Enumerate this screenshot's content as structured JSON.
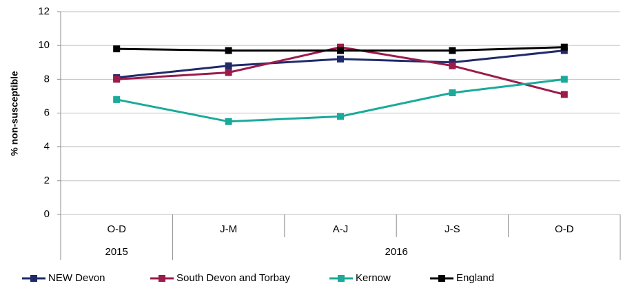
{
  "chart_data": {
    "type": "line",
    "y_label": "% non-susceptible",
    "categories": [
      "O-D",
      "J-M",
      "A-J",
      "J-S",
      "O-D"
    ],
    "category_groups": [
      "2015",
      "2016"
    ],
    "series": [
      {
        "name": "NEW Devon",
        "color": "#1f2a6b",
        "values": [
          8.1,
          8.8,
          9.2,
          9.0,
          9.7
        ]
      },
      {
        "name": "South Devon and Torbay",
        "color": "#9b1b4a",
        "values": [
          8.0,
          8.4,
          9.9,
          8.8,
          7.1
        ]
      },
      {
        "name": "Kernow",
        "color": "#1aaa9a",
        "values": [
          6.8,
          5.5,
          5.8,
          7.2,
          8.0
        ]
      },
      {
        "name": "England",
        "color": "#000000",
        "values": [
          9.8,
          9.7,
          9.7,
          9.7,
          9.9
        ]
      }
    ],
    "ylim": [
      0,
      12
    ],
    "yticks": [
      0,
      2,
      4,
      6,
      8,
      10,
      12
    ],
    "grid": true,
    "legend": "bottom"
  }
}
